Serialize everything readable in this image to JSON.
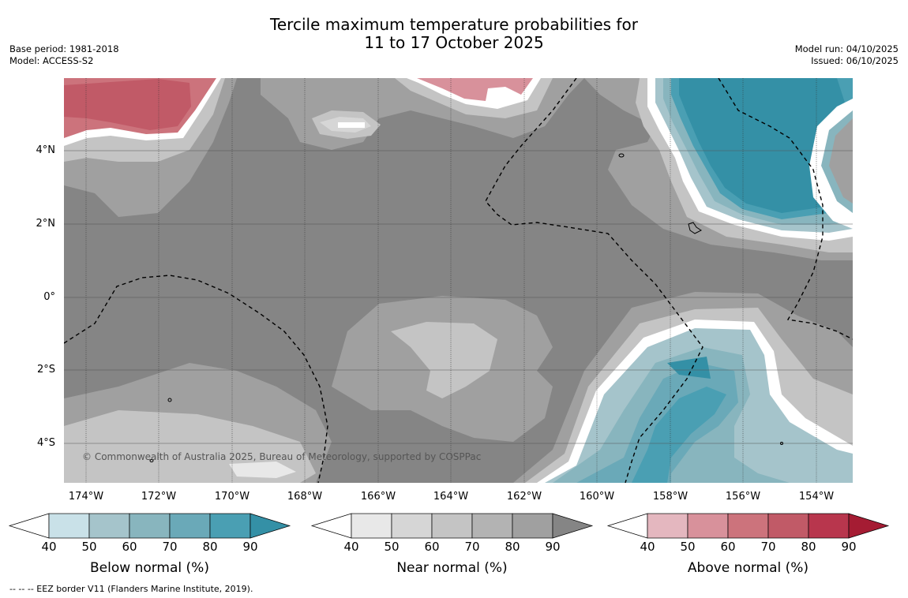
{
  "title": {
    "line1": "Tercile maximum temperature probabilities for",
    "line2": "11 to 17 October 2025"
  },
  "meta_left": {
    "base_period": "Base period: 1981-2018",
    "model": "Model: ACCESS-S2"
  },
  "meta_right": {
    "model_run": "Model run: 04/10/2025",
    "issued": "Issued: 06/10/2025"
  },
  "map": {
    "lat_labels": [
      "4°N",
      "2°N",
      "0°",
      "2°S",
      "4°S"
    ],
    "lon_labels": [
      "174°W",
      "172°W",
      "170°W",
      "168°W",
      "166°W",
      "164°W",
      "162°W",
      "160°W",
      "158°W",
      "156°W",
      "154°W"
    ],
    "copyright": "© Commonwealth of Australia 2025, Bureau of Meteorology, supported by COSPPac"
  },
  "colorbars": [
    {
      "title": "Below normal (%)",
      "ticks": [
        "40",
        "50",
        "60",
        "70",
        "80",
        "90"
      ],
      "colors": [
        "#ffffff",
        "#c9e1e8",
        "#a5c4cb",
        "#88b5be",
        "#6aa9b8",
        "#4a9fb3",
        "#3490a6"
      ]
    },
    {
      "title": "Near normal (%)",
      "ticks": [
        "40",
        "50",
        "60",
        "70",
        "80",
        "90"
      ],
      "colors": [
        "#ffffff",
        "#e8e8e8",
        "#d6d6d6",
        "#c4c4c4",
        "#b3b3b3",
        "#a0a0a0",
        "#858585"
      ]
    },
    {
      "title": "Above normal (%)",
      "ticks": [
        "40",
        "50",
        "60",
        "70",
        "80",
        "90"
      ],
      "colors": [
        "#ffffff",
        "#e4b7bf",
        "#d8919b",
        "#cc737c",
        "#c15a67",
        "#b8364d",
        "#a51c33"
      ]
    }
  ],
  "footer": "--  --  -- EEZ border V11 (Flanders Marine Institute, 2019)."
}
